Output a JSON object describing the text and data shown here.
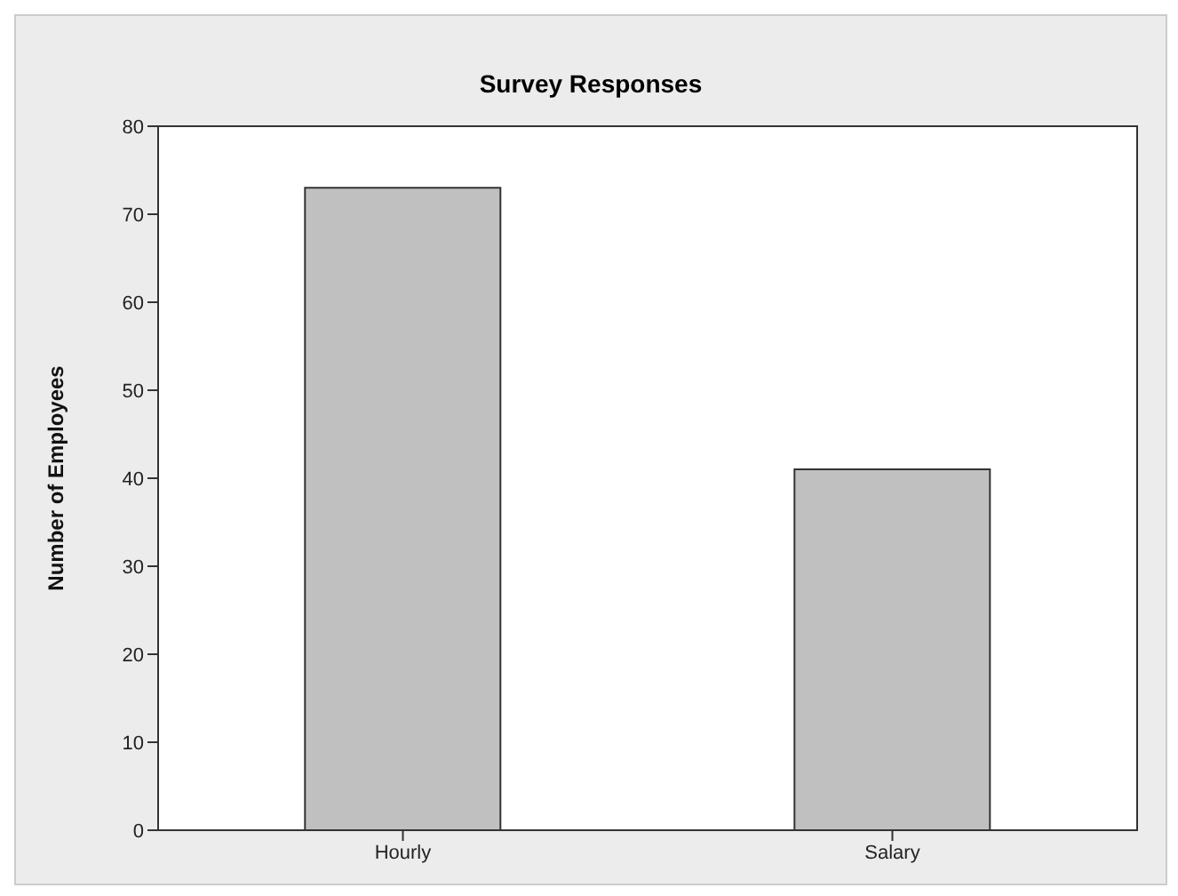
{
  "chart_data": {
    "type": "bar",
    "title": "Survey Responses",
    "ylabel": "Number of Employees",
    "categories": [
      "Hourly",
      "Salary"
    ],
    "values": [
      73,
      41
    ],
    "color": "#c0c0c0",
    "ylim": [
      0,
      80
    ],
    "yticks": [
      0,
      10,
      20,
      30,
      40,
      50,
      60,
      70,
      80
    ]
  }
}
